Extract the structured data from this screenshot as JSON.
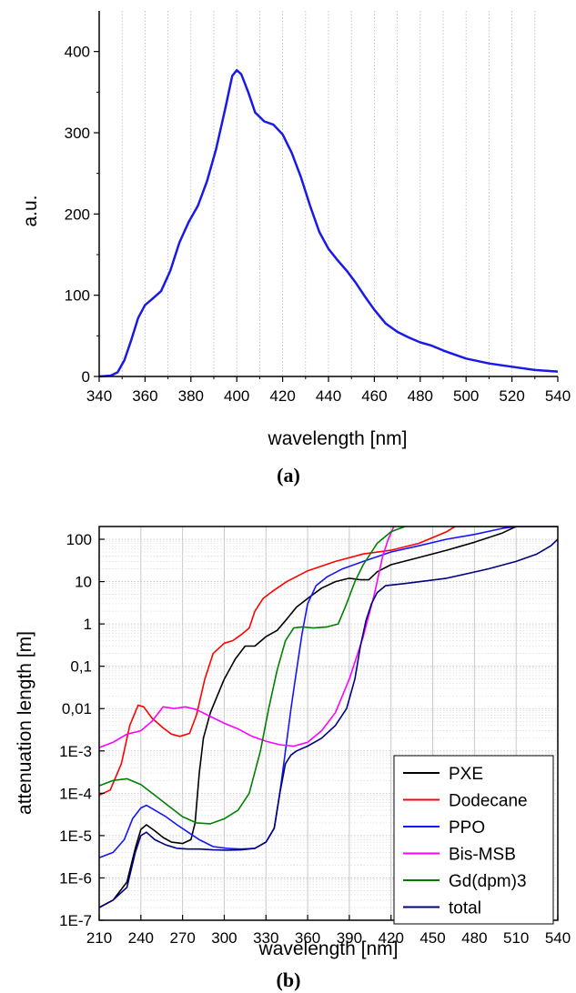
{
  "chart_data": [
    {
      "type": "line",
      "caption": "(a)",
      "xlabel": "wavelength [nm]",
      "ylabel": "a.u.",
      "xlim": [
        340,
        540
      ],
      "ylim": [
        0,
        450
      ],
      "xticks": [
        340,
        360,
        380,
        400,
        420,
        440,
        460,
        480,
        500,
        520,
        540
      ],
      "yticks": [
        0,
        100,
        200,
        300,
        400
      ],
      "grid": "vertical dotted",
      "series": [
        {
          "color": "#1a1ae6",
          "points": [
            [
              340,
              0
            ],
            [
              345,
              1
            ],
            [
              348,
              5
            ],
            [
              351,
              20
            ],
            [
              354,
              45
            ],
            [
              357,
              72
            ],
            [
              360,
              88
            ],
            [
              363,
              95
            ],
            [
              367,
              105
            ],
            [
              371,
              130
            ],
            [
              375,
              165
            ],
            [
              379,
              190
            ],
            [
              383,
              210
            ],
            [
              387,
              240
            ],
            [
              391,
              280
            ],
            [
              395,
              330
            ],
            [
              398,
              370
            ],
            [
              400,
              377
            ],
            [
              402,
              372
            ],
            [
              405,
              350
            ],
            [
              408,
              325
            ],
            [
              412,
              314
            ],
            [
              416,
              310
            ],
            [
              420,
              298
            ],
            [
              424,
              275
            ],
            [
              428,
              245
            ],
            [
              432,
              210
            ],
            [
              436,
              178
            ],
            [
              440,
              157
            ],
            [
              444,
              143
            ],
            [
              448,
              130
            ],
            [
              452,
              115
            ],
            [
              456,
              98
            ],
            [
              460,
              82
            ],
            [
              465,
              65
            ],
            [
              470,
              55
            ],
            [
              475,
              48
            ],
            [
              480,
              42
            ],
            [
              485,
              38
            ],
            [
              490,
              32
            ],
            [
              495,
              27
            ],
            [
              500,
              22
            ],
            [
              510,
              16
            ],
            [
              520,
              12
            ],
            [
              530,
              8
            ],
            [
              540,
              6
            ]
          ]
        }
      ]
    },
    {
      "type": "line",
      "caption": "(b)",
      "xlabel": "wavelength [nm]",
      "ylabel": "attenuation length [m]",
      "xlim": [
        210,
        540
      ],
      "yscale": "log",
      "ylim": [
        1e-07,
        200
      ],
      "xticks": [
        210,
        240,
        270,
        300,
        330,
        360,
        390,
        420,
        450,
        480,
        510,
        540
      ],
      "ytick_labels": [
        "1E-7",
        "1E-6",
        "1E-5",
        "1E-4",
        "1E-3",
        "0,01",
        "0,1",
        "1",
        "10",
        "100"
      ],
      "ytick_values": [
        1e-07,
        1e-06,
        1e-05,
        0.0001,
        0.001,
        0.01,
        0.1,
        1,
        10,
        100
      ],
      "grid": "vertical solid, horizontal dotted",
      "legend_position": "bottom-right",
      "series": [
        {
          "name": "PXE",
          "color": "#000000",
          "points": [
            [
              210,
              2e-07
            ],
            [
              220,
              3e-07
            ],
            [
              230,
              8e-07
            ],
            [
              236,
              5e-06
            ],
            [
              240,
              1.4e-05
            ],
            [
              244,
              1.8e-05
            ],
            [
              250,
              1.3e-05
            ],
            [
              256,
              9e-06
            ],
            [
              262,
              7e-06
            ],
            [
              270,
              6.5e-06
            ],
            [
              276,
              8e-06
            ],
            [
              279,
              2e-05
            ],
            [
              282,
              0.0003
            ],
            [
              285,
              0.002
            ],
            [
              290,
              0.008
            ],
            [
              295,
              0.02
            ],
            [
              300,
              0.05
            ],
            [
              308,
              0.15
            ],
            [
              315,
              0.3
            ],
            [
              322,
              0.3
            ],
            [
              330,
              0.5
            ],
            [
              338,
              0.7
            ],
            [
              345,
              1.3
            ],
            [
              352,
              2.5
            ],
            [
              360,
              4
            ],
            [
              370,
              7
            ],
            [
              380,
              10
            ],
            [
              390,
              12
            ],
            [
              398,
              11
            ],
            [
              404,
              11
            ],
            [
              410,
              17
            ],
            [
              420,
              25
            ],
            [
              440,
              37
            ],
            [
              460,
              55
            ],
            [
              480,
              85
            ],
            [
              500,
              140
            ],
            [
              510,
              200
            ],
            [
              540,
              200
            ]
          ]
        },
        {
          "name": "Dodecane",
          "color": "#ff0000",
          "points": [
            [
              210,
              9e-05
            ],
            [
              218,
              0.00012
            ],
            [
              226,
              0.0005
            ],
            [
              232,
              0.004
            ],
            [
              238,
              0.012
            ],
            [
              242,
              0.011
            ],
            [
              248,
              0.006
            ],
            [
              256,
              0.0035
            ],
            [
              262,
              0.0025
            ],
            [
              268,
              0.0022
            ],
            [
              275,
              0.0026
            ],
            [
              280,
              0.007
            ],
            [
              286,
              0.05
            ],
            [
              292,
              0.2
            ],
            [
              300,
              0.35
            ],
            [
              306,
              0.4
            ],
            [
              312,
              0.55
            ],
            [
              318,
              0.8
            ],
            [
              322,
              2
            ],
            [
              328,
              4
            ],
            [
              335,
              6
            ],
            [
              345,
              10
            ],
            [
              360,
              18
            ],
            [
              380,
              30
            ],
            [
              400,
              45
            ],
            [
              420,
              55
            ],
            [
              440,
              80
            ],
            [
              460,
              150
            ],
            [
              466,
              200
            ],
            [
              540,
              200
            ]
          ]
        },
        {
          "name": "PPO",
          "color": "#1414ff",
          "points": [
            [
              210,
              3e-06
            ],
            [
              220,
              4e-06
            ],
            [
              228,
              8e-06
            ],
            [
              234,
              2.5e-05
            ],
            [
              240,
              4.5e-05
            ],
            [
              244,
              5.2e-05
            ],
            [
              250,
              4e-05
            ],
            [
              258,
              2.8e-05
            ],
            [
              266,
              1.8e-05
            ],
            [
              274,
              1.2e-05
            ],
            [
              282,
              8e-06
            ],
            [
              292,
              5.5e-06
            ],
            [
              302,
              5e-06
            ],
            [
              312,
              4.8e-06
            ],
            [
              322,
              5e-06
            ],
            [
              330,
              7e-06
            ],
            [
              336,
              1.5e-05
            ],
            [
              340,
              0.0001
            ],
            [
              344,
              0.001
            ],
            [
              348,
              0.01
            ],
            [
              352,
              0.08
            ],
            [
              356,
              0.6
            ],
            [
              360,
              3
            ],
            [
              366,
              8
            ],
            [
              374,
              13
            ],
            [
              385,
              20
            ],
            [
              400,
              30
            ],
            [
              420,
              50
            ],
            [
              440,
              70
            ],
            [
              460,
              100
            ],
            [
              480,
              130
            ],
            [
              500,
              180
            ],
            [
              510,
              200
            ],
            [
              540,
              200
            ]
          ]
        },
        {
          "name": "Bis-MSB",
          "color": "#ff00ff",
          "points": [
            [
              210,
              0.0012
            ],
            [
              220,
              0.0016
            ],
            [
              230,
              0.0025
            ],
            [
              240,
              0.003
            ],
            [
              248,
              0.005
            ],
            [
              256,
              0.011
            ],
            [
              264,
              0.01
            ],
            [
              272,
              0.011
            ],
            [
              280,
              0.0095
            ],
            [
              290,
              0.0065
            ],
            [
              300,
              0.0045
            ],
            [
              310,
              0.0033
            ],
            [
              320,
              0.0022
            ],
            [
              330,
              0.0017
            ],
            [
              340,
              0.0014
            ],
            [
              350,
              0.0013
            ],
            [
              360,
              0.0016
            ],
            [
              370,
              0.003
            ],
            [
              380,
              0.008
            ],
            [
              390,
              0.05
            ],
            [
              400,
              0.5
            ],
            [
              408,
              5
            ],
            [
              414,
              40
            ],
            [
              418,
              100
            ],
            [
              422,
              200
            ]
          ]
        },
        {
          "name": "Gd(dpm)3",
          "color": "#008000",
          "points": [
            [
              210,
              0.00015
            ],
            [
              220,
              0.0002
            ],
            [
              230,
              0.00022
            ],
            [
              240,
              0.00016
            ],
            [
              250,
              9e-05
            ],
            [
              260,
              5e-05
            ],
            [
              270,
              2.8e-05
            ],
            [
              280,
              2e-05
            ],
            [
              290,
              1.9e-05
            ],
            [
              300,
              2.5e-05
            ],
            [
              310,
              4e-05
            ],
            [
              318,
              0.0001
            ],
            [
              326,
              0.001
            ],
            [
              332,
              0.01
            ],
            [
              338,
              0.08
            ],
            [
              344,
              0.4
            ],
            [
              350,
              0.8
            ],
            [
              356,
              0.85
            ],
            [
              364,
              0.8
            ],
            [
              374,
              0.85
            ],
            [
              382,
              1
            ],
            [
              388,
              3
            ],
            [
              394,
              10
            ],
            [
              400,
              25
            ],
            [
              410,
              80
            ],
            [
              420,
              150
            ],
            [
              430,
              200
            ]
          ]
        },
        {
          "name": "total",
          "color": "#000080",
          "points": [
            [
              210,
              2e-07
            ],
            [
              220,
              3e-07
            ],
            [
              230,
              6e-07
            ],
            [
              236,
              4e-06
            ],
            [
              240,
              1e-05
            ],
            [
              244,
              1.2e-05
            ],
            [
              250,
              8e-06
            ],
            [
              258,
              6e-06
            ],
            [
              266,
              5e-06
            ],
            [
              274,
              4.8e-06
            ],
            [
              282,
              4.8e-06
            ],
            [
              292,
              4.6e-06
            ],
            [
              302,
              4.5e-06
            ],
            [
              312,
              4.6e-06
            ],
            [
              322,
              5e-06
            ],
            [
              330,
              7e-06
            ],
            [
              336,
              1.5e-05
            ],
            [
              340,
              0.0001
            ],
            [
              344,
              0.0005
            ],
            [
              348,
              0.0008
            ],
            [
              352,
              0.001
            ],
            [
              360,
              0.0013
            ],
            [
              370,
              0.002
            ],
            [
              380,
              0.004
            ],
            [
              388,
              0.01
            ],
            [
              394,
              0.05
            ],
            [
              398,
              0.3
            ],
            [
              402,
              1.2
            ],
            [
              406,
              3
            ],
            [
              410,
              5.5
            ],
            [
              416,
              8
            ],
            [
              430,
              9
            ],
            [
              460,
              12
            ],
            [
              490,
              20
            ],
            [
              510,
              30
            ],
            [
              525,
              45
            ],
            [
              535,
              70
            ],
            [
              540,
              100
            ]
          ]
        }
      ]
    }
  ]
}
